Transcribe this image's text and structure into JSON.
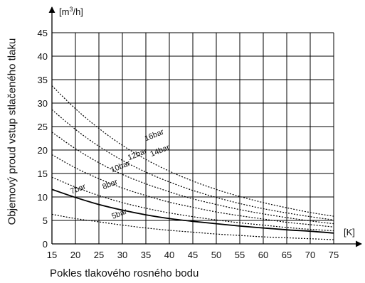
{
  "chart_data": {
    "type": "line",
    "xlabel": "Pokles tlakového rosného bodu",
    "ylabel": "Objemový proud vstup stlačeného tlaku",
    "x_unit": "[K]",
    "y_unit_prefix": "[m",
    "y_unit_sup": "3",
    "y_unit_suffix": "/h]",
    "xlim": [
      15,
      75
    ],
    "ylim": [
      0,
      45
    ],
    "x_ticks": [
      15,
      20,
      25,
      30,
      35,
      40,
      45,
      50,
      55,
      60,
      65,
      70,
      75
    ],
    "y_ticks": [
      0,
      5,
      10,
      15,
      20,
      25,
      30,
      35,
      40,
      45
    ],
    "grid": true,
    "series": [
      {
        "name": "5bar",
        "style": "dotted",
        "x": [
          15,
          20,
          25,
          30,
          35,
          40,
          45,
          50,
          55,
          60,
          65,
          70,
          75
        ],
        "y": [
          6.3,
          5.4,
          4.7,
          4.0,
          3.4,
          2.9,
          2.5,
          2.1,
          1.8,
          1.5,
          1.3,
          1.1,
          0.9
        ]
      },
      {
        "name": "7bar",
        "style": "solid",
        "x": [
          15,
          20,
          25,
          30,
          35,
          40,
          45,
          50,
          55,
          60,
          65,
          70,
          75
        ],
        "y": [
          11.6,
          9.9,
          8.4,
          7.2,
          6.2,
          5.4,
          4.8,
          4.3,
          3.8,
          3.4,
          3.0,
          2.7,
          2.3
        ]
      },
      {
        "name": "8bar",
        "style": "dotted",
        "x": [
          15,
          20,
          25,
          30,
          35,
          40,
          45,
          50,
          55,
          60,
          65,
          70,
          75
        ],
        "y": [
          14.2,
          12.1,
          10.3,
          8.8,
          7.6,
          6.6,
          5.8,
          5.1,
          4.5,
          4.0,
          3.5,
          3.1,
          2.8
        ]
      },
      {
        "name": "10bar",
        "style": "dotted",
        "x": [
          15,
          20,
          25,
          30,
          35,
          40,
          45,
          50,
          55,
          60,
          65,
          70,
          75
        ],
        "y": [
          19.0,
          16.2,
          13.9,
          11.9,
          10.3,
          8.9,
          7.8,
          6.8,
          6.0,
          5.3,
          4.6,
          4.1,
          3.6
        ]
      },
      {
        "name": "12bar",
        "style": "dotted",
        "x": [
          15,
          20,
          25,
          30,
          35,
          40,
          45,
          50,
          55,
          60,
          65,
          70,
          75
        ],
        "y": [
          23.8,
          20.3,
          17.3,
          14.8,
          12.8,
          11.1,
          9.6,
          8.4,
          7.3,
          6.4,
          5.6,
          4.9,
          4.3
        ]
      },
      {
        "name": "14bar",
        "style": "dotted",
        "x": [
          15,
          20,
          25,
          30,
          35,
          40,
          45,
          50,
          55,
          60,
          65,
          70,
          75
        ],
        "y": [
          28.6,
          24.4,
          20.8,
          17.8,
          15.3,
          13.2,
          11.4,
          9.9,
          8.6,
          7.5,
          6.6,
          5.8,
          5.1
        ]
      },
      {
        "name": "16bar",
        "style": "dotted",
        "x": [
          15,
          20,
          25,
          30,
          35,
          40,
          45,
          50,
          55,
          60,
          65,
          70,
          75
        ],
        "y": [
          33.7,
          28.8,
          24.6,
          21.0,
          18.0,
          15.5,
          13.4,
          11.6,
          10.1,
          8.8,
          7.7,
          6.7,
          5.9
        ]
      }
    ],
    "labels": [
      {
        "text": "5bar",
        "x": 28,
        "y": 5.3
      },
      {
        "text": "7bar",
        "x": 19.2,
        "y": 10.6
      },
      {
        "text": "8bar",
        "x": 26,
        "y": 11.6
      },
      {
        "text": "10bar",
        "x": 27.8,
        "y": 15.2
      },
      {
        "text": "12bar",
        "x": 31.4,
        "y": 17.8
      },
      {
        "text": "14bar",
        "x": 36.2,
        "y": 18.6
      },
      {
        "text": "16bar",
        "x": 35,
        "y": 21.9
      }
    ]
  }
}
